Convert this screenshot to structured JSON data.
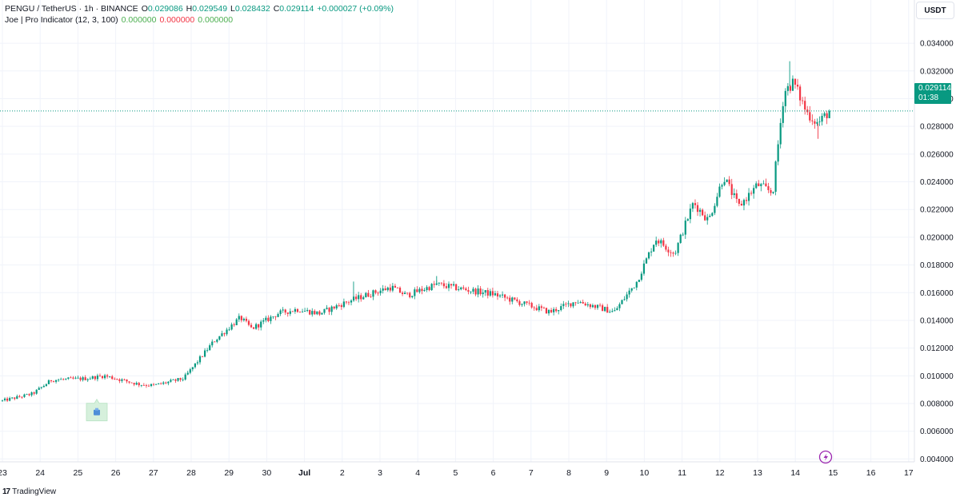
{
  "legend": {
    "symbol": "PENGU / TetherUS · 1h · BINANCE",
    "open_label": "O",
    "open": "0.029086",
    "high_label": "H",
    "high": "0.029549",
    "low_label": "L",
    "low": "0.028432",
    "close_label": "C",
    "close": "0.029114",
    "change": "+0.000027 (+0.09%)",
    "indicator": "Joe | Pro Indicator (12, 3, 100)",
    "ind_v1": "0.000000",
    "ind_v2": "0.000000",
    "ind_v3": "0.000000"
  },
  "currency": "USDT",
  "price_tag": {
    "price": "0.029114",
    "countdown": "01:38"
  },
  "footer": {
    "logo_text": "TradingView"
  },
  "colors": {
    "up": "#089981",
    "down": "#f23645",
    "grid": "#f0f3fa",
    "text": "#131722"
  },
  "chart_data": {
    "type": "candlestick",
    "y_ticks": [
      "0.034000",
      "0.032000",
      "0.030000",
      "0.028000",
      "0.026000",
      "0.024000",
      "0.022000",
      "0.020000",
      "0.018000",
      "0.016000",
      "0.014000",
      "0.012000",
      "0.010000",
      "0.008000",
      "0.006000",
      "0.004000"
    ],
    "x_ticks": [
      "23",
      "24",
      "25",
      "26",
      "27",
      "28",
      "29",
      "30",
      "Jul",
      "2",
      "3",
      "4",
      "5",
      "6",
      "7",
      "8",
      "9",
      "10",
      "11",
      "12",
      "13",
      "14",
      "15",
      "16",
      "17"
    ],
    "ylim": [
      0.0031,
      0.0351
    ],
    "last_price": 0.029114,
    "candle_path": [
      [
        0,
        0.0082
      ],
      [
        0.8,
        0.0087
      ],
      [
        1.3,
        0.0097
      ],
      [
        2.2,
        0.0098
      ],
      [
        2.7,
        0.01
      ],
      [
        3.6,
        0.0094
      ],
      [
        4,
        0.0093
      ],
      [
        4.8,
        0.0098
      ],
      [
        5.6,
        0.0125
      ],
      [
        6.3,
        0.0142
      ],
      [
        6.6,
        0.0134
      ],
      [
        7.3,
        0.0145
      ],
      [
        7.8,
        0.0148
      ],
      [
        8.4,
        0.0145
      ],
      [
        9,
        0.0152
      ],
      [
        9.6,
        0.0158
      ],
      [
        10.3,
        0.0164
      ],
      [
        10.7,
        0.0158
      ],
      [
        11.5,
        0.0166
      ],
      [
        12.3,
        0.0162
      ],
      [
        13,
        0.0159
      ],
      [
        13.8,
        0.0152
      ],
      [
        14.5,
        0.0146
      ],
      [
        15.2,
        0.0154
      ],
      [
        16.2,
        0.0146
      ],
      [
        16.8,
        0.0168
      ],
      [
        17.3,
        0.0199
      ],
      [
        17.8,
        0.0188
      ],
      [
        18.3,
        0.0225
      ],
      [
        18.7,
        0.0212
      ],
      [
        19.1,
        0.0244
      ],
      [
        19.5,
        0.0222
      ],
      [
        20,
        0.0238
      ],
      [
        20.4,
        0.0232
      ],
      [
        20.7,
        0.0305
      ],
      [
        20.95,
        0.0312
      ],
      [
        21.3,
        0.029
      ],
      [
        21.6,
        0.0282
      ],
      [
        21.9,
        0.02911
      ]
    ],
    "spikes": [
      {
        "x": 20.85,
        "high": 0.0327
      },
      {
        "x": 21.6,
        "low": 0.0271
      },
      {
        "x": 9.3,
        "high": 0.0168
      },
      {
        "x": 11.5,
        "high": 0.0172
      }
    ],
    "marker": {
      "x": 2.5,
      "y": 0.0075,
      "kind": "signal-box"
    }
  }
}
